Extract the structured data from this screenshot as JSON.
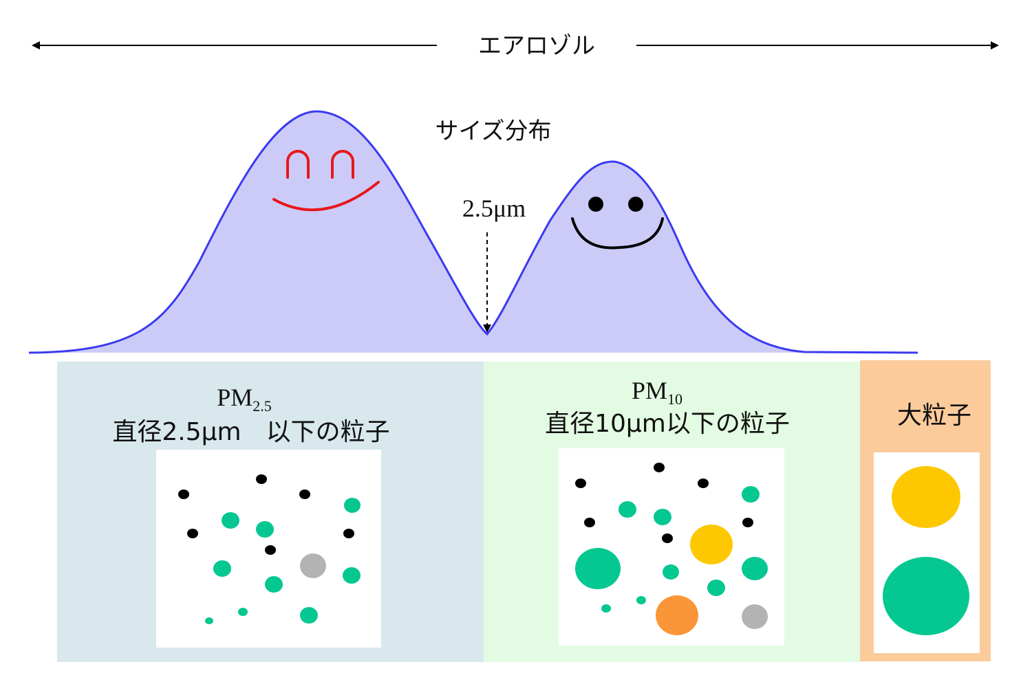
{
  "header": {
    "title": "エアロゾル"
  },
  "distribution": {
    "label": "サイズ分布",
    "cutoff_label": "2.5μm"
  },
  "panels": [
    {
      "name": "pm25",
      "title_main": "PM",
      "title_sub": "2.5",
      "description": "直径2.5μm　以下の粒子"
    },
    {
      "name": "pm10",
      "title_main": "PM",
      "title_sub": "10",
      "description": "直径10μm以下の粒子"
    },
    {
      "name": "large",
      "description": "大粒子"
    }
  ],
  "colors": {
    "curve_fill": "#cccbf8",
    "curve_stroke": "#3a3af0",
    "happy_face": "#e8161b",
    "neutral_face": "#000000",
    "pm25_bg": "#d8e8ec",
    "pm10_bg": "#e3fbe3",
    "large_bg": "#fccb9c",
    "particle_green": "#05c792",
    "particle_black": "#000000",
    "particle_gray": "#b3b3b3",
    "particle_yellow": "#fdc800",
    "particle_orange": "#fb9638"
  }
}
